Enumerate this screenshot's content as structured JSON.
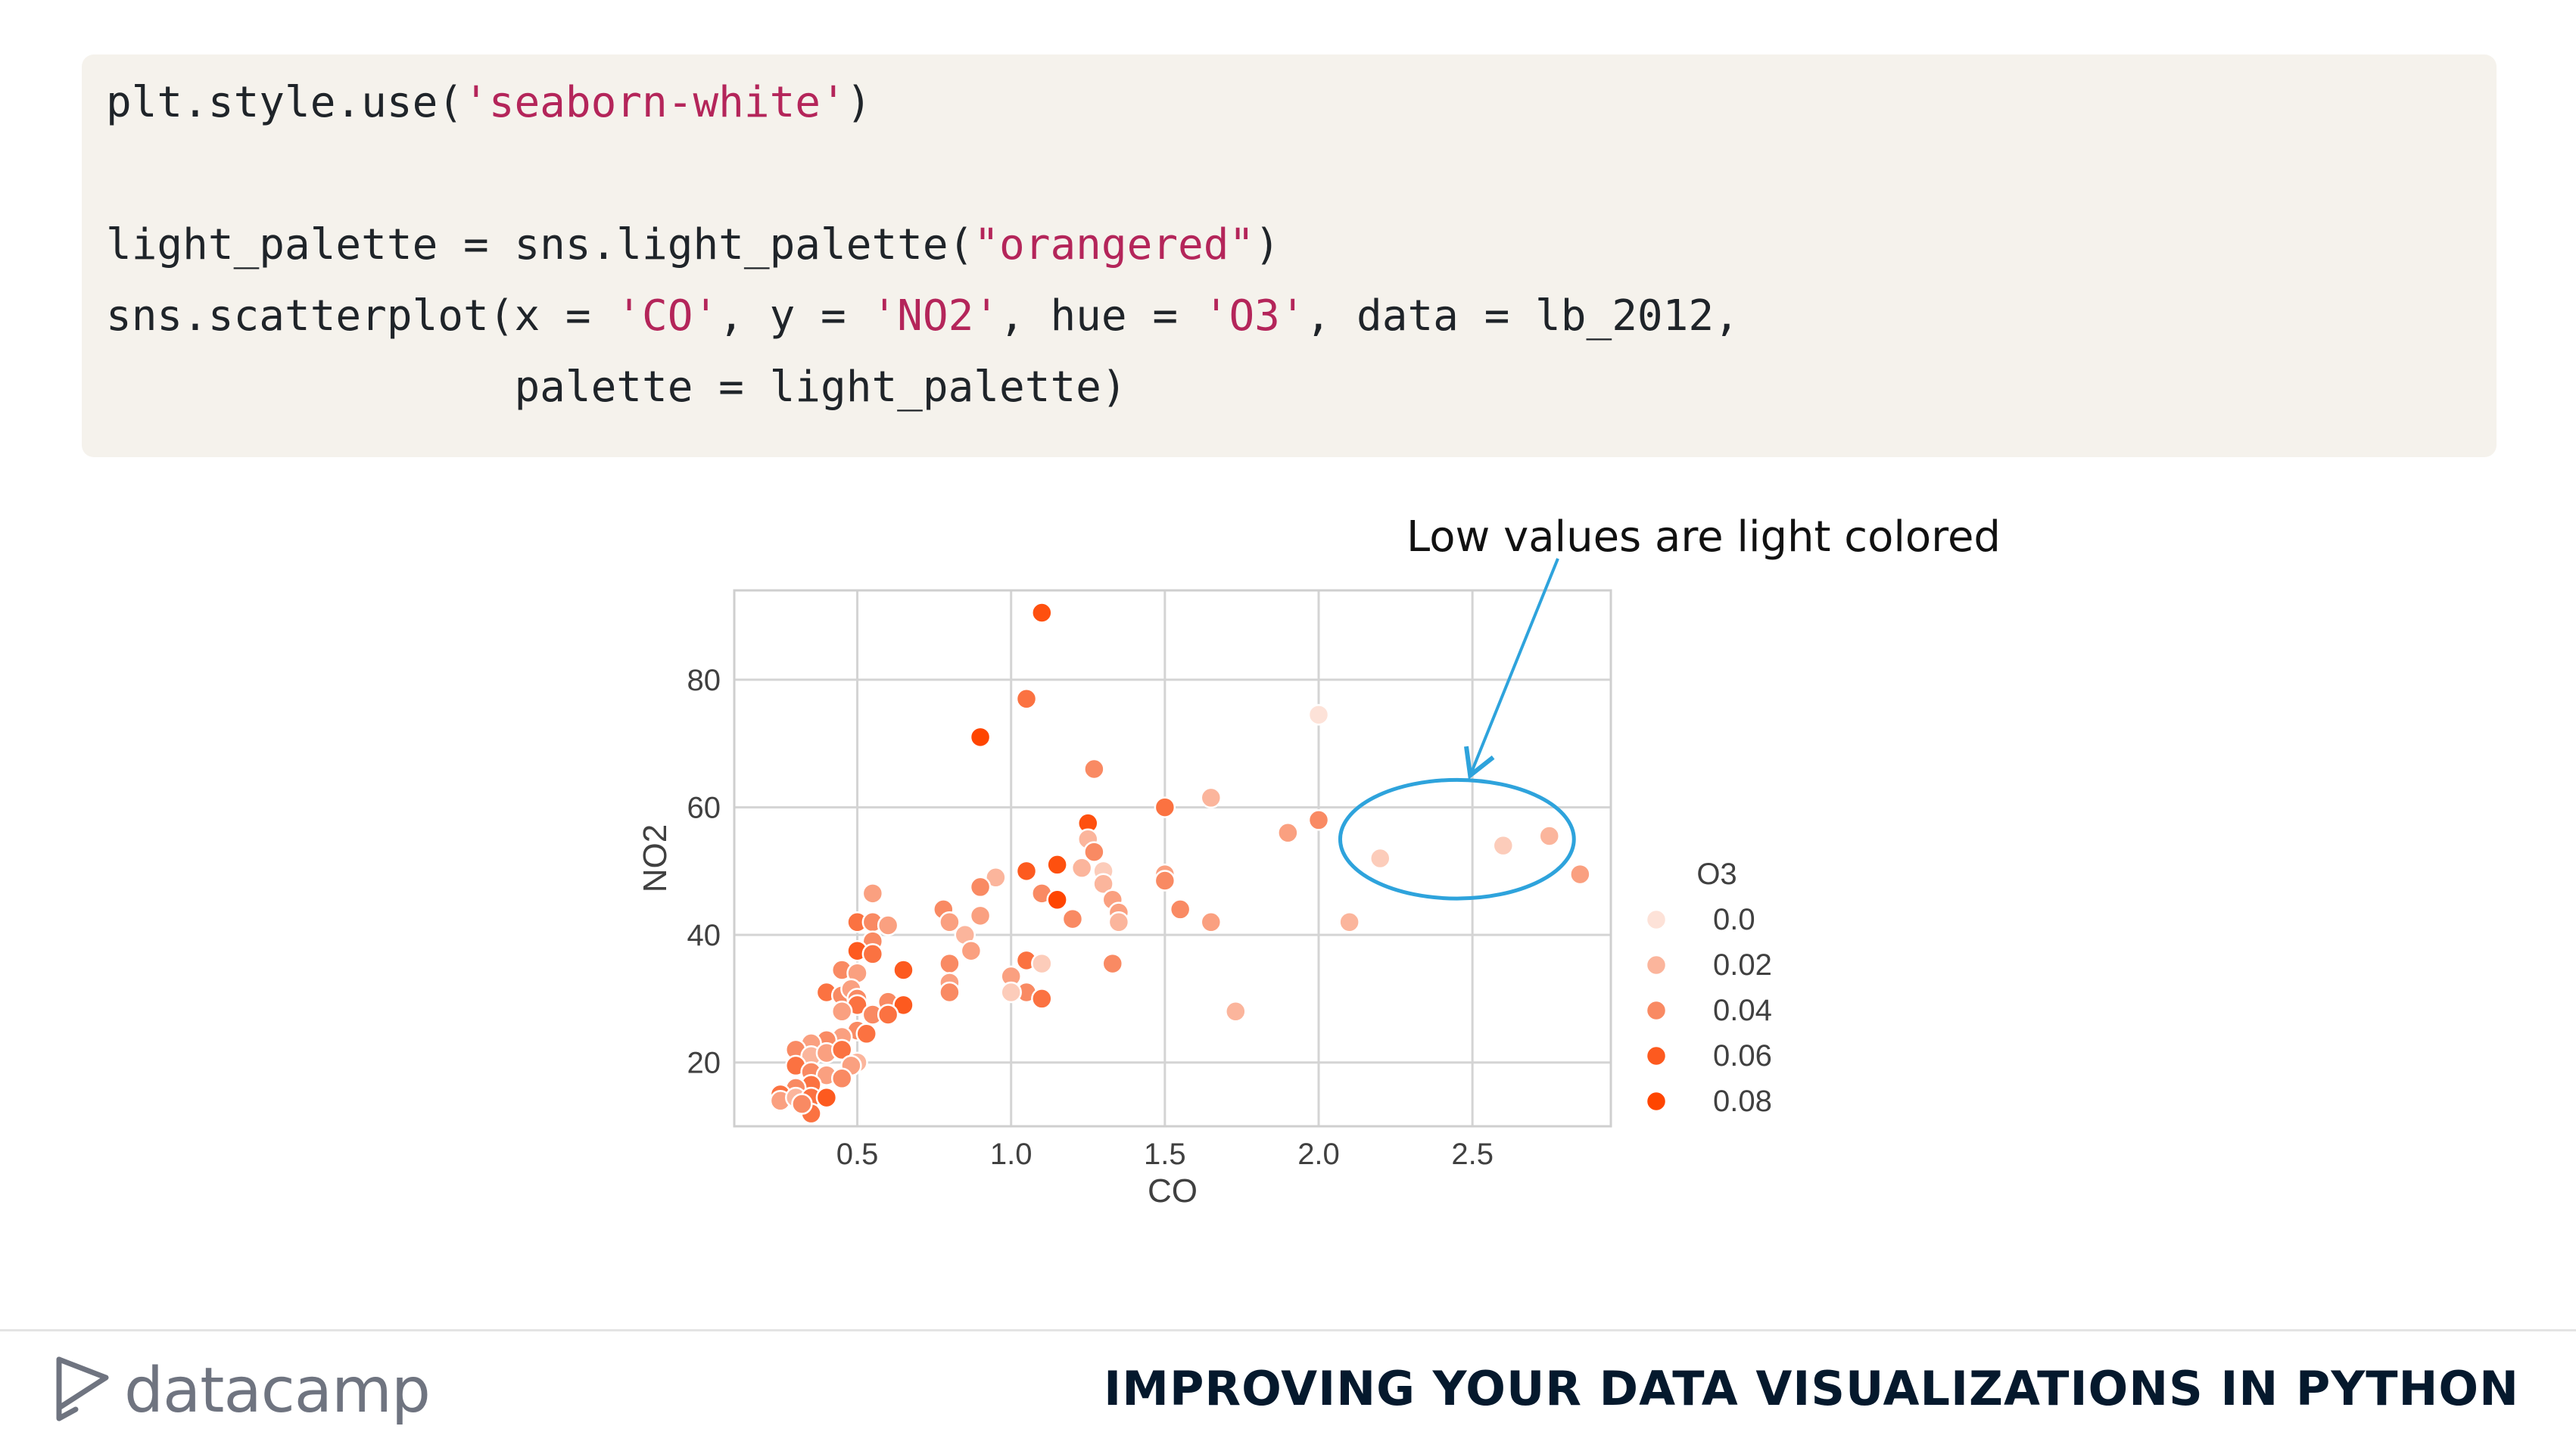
{
  "code": {
    "lines": [
      [
        {
          "t": "plt.style.use("
        },
        {
          "t": "'seaborn-white'",
          "s": 1
        },
        {
          "t": ")"
        }
      ],
      [],
      [
        {
          "t": "light_palette = sns.light_palette("
        },
        {
          "t": "\"orangered\"",
          "s": 1
        },
        {
          "t": ")"
        }
      ],
      [
        {
          "t": "sns.scatterplot(x = "
        },
        {
          "t": "'CO'",
          "s": 1
        },
        {
          "t": ", y = "
        },
        {
          "t": "'NO2'",
          "s": 1
        },
        {
          "t": ", hue = "
        },
        {
          "t": "'O3'",
          "s": 1
        },
        {
          "t": ", data = lb_2012,"
        }
      ],
      [
        {
          "t": "                palette = light_palette)"
        }
      ]
    ]
  },
  "annotation": {
    "text": "Low values are light colored",
    "arrow_color": "#2ea3dc"
  },
  "chart_data": {
    "type": "scatter",
    "xlabel": "CO",
    "ylabel": "NO2",
    "xlim": [
      0.1,
      2.95
    ],
    "ylim": [
      10,
      94
    ],
    "xticks": [
      0.5,
      1.0,
      1.5,
      2.0,
      2.5
    ],
    "yticks": [
      20,
      40,
      60,
      80
    ],
    "grid": true,
    "hue_label": "O3",
    "legend_position": "right",
    "legend": [
      {
        "label": "0.0",
        "color": "#fde2d8"
      },
      {
        "label": "0.02",
        "color": "#fbb59c"
      },
      {
        "label": "0.04",
        "color": "#f98a63"
      },
      {
        "label": "0.06",
        "color": "#fd5a1f"
      },
      {
        "label": "0.08",
        "color": "#ff4500"
      }
    ],
    "highlight_ellipse": {
      "cx": 2.45,
      "cy": 55,
      "rx": 0.38,
      "ry": 9.3,
      "color": "#2ea3dc"
    },
    "points": [
      [
        1.1,
        90.5,
        0.07
      ],
      [
        1.05,
        77,
        0.05
      ],
      [
        0.9,
        71,
        0.08
      ],
      [
        1.27,
        66,
        0.04
      ],
      [
        2.0,
        74.5,
        0.0
      ],
      [
        1.65,
        61.5,
        0.02
      ],
      [
        1.5,
        60,
        0.05
      ],
      [
        1.25,
        57.5,
        0.07
      ],
      [
        2.0,
        58,
        0.04
      ],
      [
        1.9,
        56,
        0.03
      ],
      [
        2.75,
        55.5,
        0.02
      ],
      [
        2.6,
        54,
        0.01
      ],
      [
        2.2,
        52,
        0.01
      ],
      [
        2.85,
        49.5,
        0.03
      ],
      [
        1.25,
        55,
        0.02
      ],
      [
        1.27,
        53,
        0.04
      ],
      [
        1.15,
        51,
        0.07
      ],
      [
        1.05,
        50,
        0.06
      ],
      [
        0.95,
        49,
        0.02
      ],
      [
        1.23,
        50.5,
        0.02
      ],
      [
        1.3,
        50,
        0.01
      ],
      [
        1.3,
        48,
        0.02
      ],
      [
        1.5,
        49.5,
        0.03
      ],
      [
        1.5,
        48.5,
        0.04
      ],
      [
        0.9,
        47.5,
        0.04
      ],
      [
        1.1,
        46.5,
        0.04
      ],
      [
        1.15,
        45.5,
        0.08
      ],
      [
        1.33,
        45.5,
        0.03
      ],
      [
        1.35,
        43.5,
        0.03
      ],
      [
        1.55,
        44,
        0.04
      ],
      [
        1.65,
        42,
        0.03
      ],
      [
        2.1,
        42,
        0.02
      ],
      [
        1.2,
        42.5,
        0.04
      ],
      [
        1.35,
        42,
        0.02
      ],
      [
        0.9,
        43,
        0.03
      ],
      [
        0.78,
        44,
        0.04
      ],
      [
        0.8,
        42,
        0.03
      ],
      [
        0.85,
        40,
        0.02
      ],
      [
        0.87,
        37.5,
        0.03
      ],
      [
        0.8,
        35.5,
        0.04
      ],
      [
        1.05,
        36,
        0.05
      ],
      [
        1.1,
        35.5,
        0.01
      ],
      [
        1.33,
        35.5,
        0.04
      ],
      [
        1.0,
        33.5,
        0.03
      ],
      [
        1.05,
        31,
        0.04
      ],
      [
        1.0,
        31,
        0.01
      ],
      [
        1.1,
        30,
        0.05
      ],
      [
        0.8,
        32.5,
        0.03
      ],
      [
        0.8,
        31,
        0.04
      ],
      [
        1.73,
        28,
        0.02
      ],
      [
        0.55,
        46.5,
        0.03
      ],
      [
        0.5,
        42,
        0.05
      ],
      [
        0.55,
        42,
        0.04
      ],
      [
        0.6,
        41.5,
        0.03
      ],
      [
        0.55,
        39,
        0.04
      ],
      [
        0.5,
        37.5,
        0.06
      ],
      [
        0.55,
        37,
        0.05
      ],
      [
        0.45,
        34.5,
        0.04
      ],
      [
        0.5,
        34,
        0.03
      ],
      [
        0.65,
        34.5,
        0.06
      ],
      [
        0.4,
        31,
        0.05
      ],
      [
        0.45,
        30.5,
        0.04
      ],
      [
        0.48,
        31.5,
        0.03
      ],
      [
        0.5,
        30,
        0.04
      ],
      [
        0.5,
        29,
        0.05
      ],
      [
        0.6,
        29.5,
        0.04
      ],
      [
        0.65,
        29,
        0.06
      ],
      [
        0.45,
        28,
        0.03
      ],
      [
        0.55,
        27.5,
        0.04
      ],
      [
        0.6,
        27.5,
        0.05
      ],
      [
        0.5,
        25,
        0.04
      ],
      [
        0.53,
        24.5,
        0.05
      ],
      [
        0.45,
        24,
        0.03
      ],
      [
        0.4,
        23.5,
        0.04
      ],
      [
        0.35,
        23,
        0.03
      ],
      [
        0.3,
        22,
        0.04
      ],
      [
        0.35,
        21,
        0.02
      ],
      [
        0.4,
        21.5,
        0.03
      ],
      [
        0.45,
        22,
        0.05
      ],
      [
        0.5,
        20,
        0.02
      ],
      [
        0.48,
        19.5,
        0.03
      ],
      [
        0.3,
        19.5,
        0.05
      ],
      [
        0.35,
        18.5,
        0.04
      ],
      [
        0.4,
        18,
        0.03
      ],
      [
        0.45,
        17.5,
        0.04
      ],
      [
        0.35,
        16.5,
        0.05
      ],
      [
        0.3,
        16,
        0.04
      ],
      [
        0.25,
        15,
        0.05
      ],
      [
        0.25,
        14,
        0.03
      ],
      [
        0.3,
        14.5,
        0.02
      ],
      [
        0.35,
        14.5,
        0.05
      ],
      [
        0.4,
        14.5,
        0.06
      ],
      [
        0.35,
        12,
        0.05
      ],
      [
        0.32,
        13.5,
        0.04
      ]
    ]
  },
  "footer": {
    "logo_text": "datacamp",
    "course_title": "IMPROVING YOUR DATA VISUALIZATIONS IN PYTHON"
  }
}
